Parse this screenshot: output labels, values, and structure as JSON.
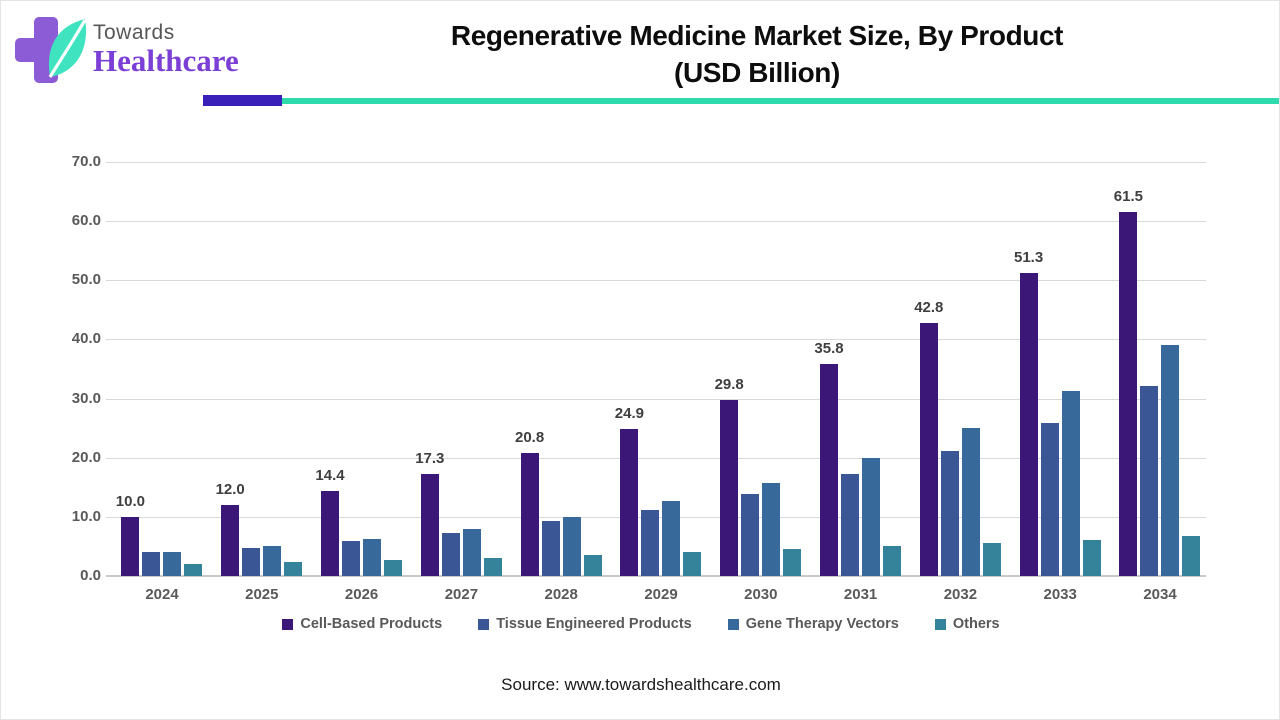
{
  "logo": {
    "line1": "Towards",
    "line2": "Healthcare"
  },
  "title": {
    "line1": "Regenerative Medicine Market Size, By Product",
    "line2": "(USD Billion)"
  },
  "source": "Source: www.towardshealthcare.com",
  "colors": {
    "accent_purple_rule": "#3a20b8",
    "accent_teal_rule": "#2ed9ac",
    "logo_cross": "#8b5cd6",
    "logo_leaf": "#3fe3c0",
    "logo_healthcare_text": "#7b3fd6",
    "gridline": "#d9d9d9",
    "axis_text": "#595959",
    "value_label_text": "#3f3f3f"
  },
  "chart_data": {
    "type": "bar",
    "title": "Regenerative Medicine Market Size, By Product (USD Billion)",
    "categories": [
      "2024",
      "2025",
      "2026",
      "2027",
      "2028",
      "2029",
      "2030",
      "2031",
      "2032",
      "2033",
      "2034"
    ],
    "series": [
      {
        "name": "Cell-Based Products",
        "color": "#3b1778",
        "values": [
          10.0,
          12.0,
          14.4,
          17.3,
          20.8,
          24.9,
          29.8,
          35.8,
          42.8,
          51.3,
          61.5
        ]
      },
      {
        "name": "Tissue Engineered Products",
        "color": "#3a5695",
        "values": [
          4.0,
          4.8,
          6.0,
          7.3,
          9.3,
          11.2,
          13.9,
          17.2,
          21.2,
          25.9,
          32.1
        ]
      },
      {
        "name": "Gene Therapy Vectors",
        "color": "#38699b",
        "values": [
          4.0,
          5.0,
          6.3,
          8.0,
          10.0,
          12.6,
          15.8,
          20.0,
          25.0,
          31.2,
          39.0
        ]
      },
      {
        "name": "Others",
        "color": "#35839b",
        "values": [
          2.0,
          2.3,
          2.7,
          3.0,
          3.5,
          4.0,
          4.5,
          5.0,
          5.6,
          6.1,
          6.8
        ]
      }
    ],
    "ylim": [
      0,
      70
    ],
    "ytick_step": 10,
    "ytick_format": "1_decimal",
    "grid": "horizontal",
    "legend_position": "bottom",
    "bar_value_labels": "first_series_only",
    "xlabel": "",
    "ylabel": ""
  }
}
